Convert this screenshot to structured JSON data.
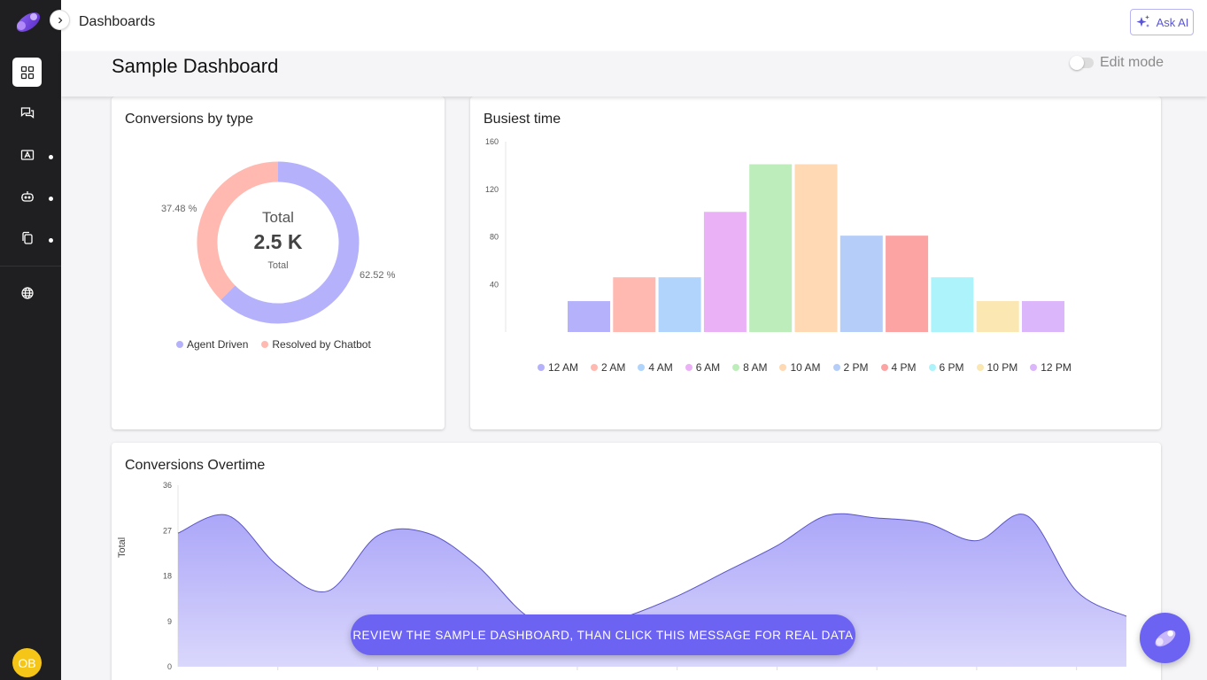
{
  "topbar": {
    "title": "Dashboards",
    "ask_ai": "Ask AI"
  },
  "header": {
    "page_title": "Sample Dashboard",
    "edit_mode": "Edit mode",
    "edit_mode_on": false
  },
  "sidebar": {
    "items": [
      {
        "name": "dashboard-icon",
        "active": true
      },
      {
        "name": "conversations-icon",
        "active": false
      },
      {
        "name": "contacts-icon",
        "active": false
      },
      {
        "name": "bot-icon",
        "active": false
      },
      {
        "name": "copy-icon",
        "active": false
      },
      {
        "name": "globe-icon",
        "active": false
      }
    ],
    "avatar": "OB"
  },
  "conversions_by_type": {
    "title": "Conversions by type",
    "center_title": "Total",
    "center_value": "2.5 K",
    "center_sub": "Total",
    "pct_left": "37.48 %",
    "pct_right": "62.52 %",
    "legend": [
      {
        "label": "Agent Driven",
        "color": "#b5b2fb"
      },
      {
        "label": "Resolved by Chatbot",
        "color": "#ffb9b0"
      }
    ]
  },
  "busiest_time": {
    "title": "Busiest time"
  },
  "conversions_overtime": {
    "title": "Conversions Overtime",
    "ylabel": "Total"
  },
  "cta": "REVIEW THE SAMPLE DASHBOARD, THAN CLICK THIS MESSAGE FOR REAL DATA",
  "chart_data": [
    {
      "type": "pie",
      "categories": [
        "Agent Driven",
        "Resolved by Chatbot"
      ],
      "values": [
        62.52,
        37.48
      ],
      "colors": [
        "#b5b2fb",
        "#ffb9b0"
      ],
      "title": "Conversions by type"
    },
    {
      "type": "bar",
      "title": "Busiest time",
      "categories": [
        "12 AM",
        "2 AM",
        "4 AM",
        "6 AM",
        "8 AM",
        "10 AM",
        "2 PM",
        "4 PM",
        "6 PM",
        "10 PM",
        "12 PM"
      ],
      "values": [
        26,
        46,
        46,
        101,
        141,
        141,
        81,
        81,
        46,
        26,
        26
      ],
      "colors": [
        "#b5b2fb",
        "#ffb9b0",
        "#b0d4fb",
        "#ebb1f7",
        "#bdedbb",
        "#fed9b3",
        "#b5cdf9",
        "#fca4a4",
        "#adf3fb",
        "#fbe7b1",
        "#dcb6fb"
      ],
      "yticks": [
        40,
        80,
        120,
        160
      ],
      "ylim": [
        0,
        160
      ],
      "legend": "bottom"
    },
    {
      "type": "area",
      "title": "Conversions Overtime",
      "ylabel": "Total",
      "yticks": [
        0,
        9,
        18,
        27,
        36
      ],
      "ylim": [
        0,
        36
      ],
      "x": [
        0,
        1,
        2,
        3,
        4,
        5,
        6,
        7,
        8,
        9,
        10,
        11,
        12,
        13,
        14,
        15,
        16,
        17,
        18,
        19
      ],
      "values": [
        26.5,
        30.0,
        20.0,
        15.0,
        26.0,
        26.5,
        20.0,
        10.0,
        7.0,
        10.0,
        14.0,
        19.0,
        24.0,
        30.0,
        29.5,
        28.5,
        25.0,
        30.0,
        15.0,
        10.0
      ],
      "color": "#b5b2fb"
    }
  ]
}
